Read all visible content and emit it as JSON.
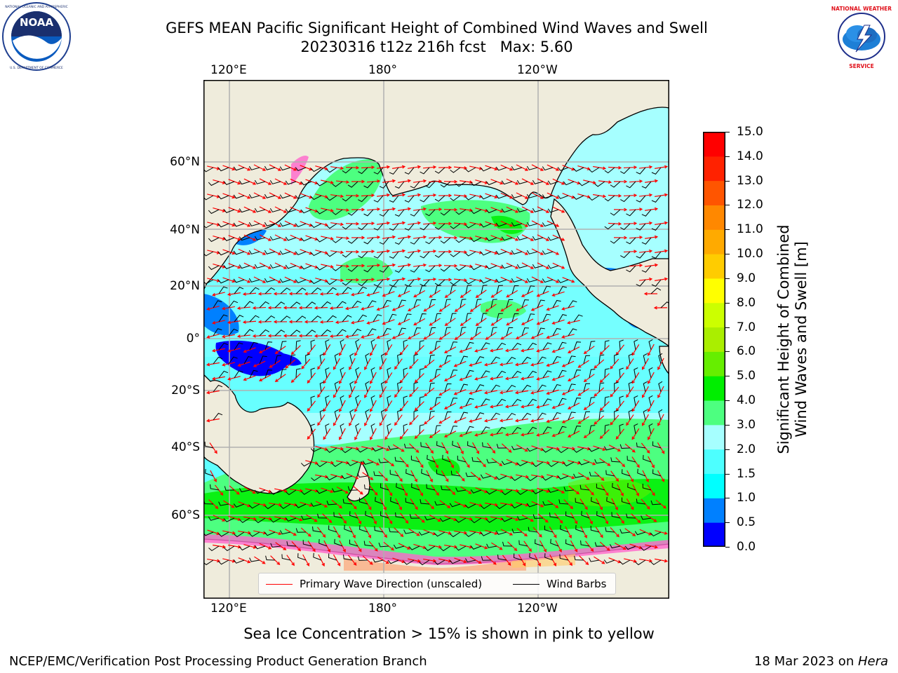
{
  "header": {
    "title_line1": "GEFS MEAN Pacific Significant Height of Combined Wind Waves and Swell",
    "title_line2": "20230316 t12z 216h fcst   Max: 5.60"
  },
  "logos": {
    "left": "NOAA",
    "left_ring_text": "NATIONAL OCEANIC AND ATMOSPHERIC ADMINISTRATION · U.S. DEPARTMENT OF COMMERCE",
    "right_ring_text": "NATIONAL WEATHER SERVICE"
  },
  "map": {
    "lon_labels_top": [
      "120°E",
      "180°",
      "120°W"
    ],
    "lon_labels_bottom": [
      "120°E",
      "180°",
      "120°W"
    ],
    "lat_labels": [
      "60°N",
      "40°N",
      "20°N",
      "0°",
      "20°S",
      "40°S",
      "60°S"
    ],
    "legend": {
      "primary_wave": "Primary Wave Direction (unscaled)",
      "wind_barbs": "Wind Barbs"
    },
    "colors": {
      "land": "#efecdc",
      "wave_arrow": "#ff0000",
      "barb": "#000000",
      "grid": "#b0b0b0"
    }
  },
  "colorbar": {
    "label_line1": "Significant Height of Combined",
    "label_line2": "Wind Waves and Swell [m]",
    "ticks": [
      "15.0",
      "14.0",
      "13.0",
      "12.0",
      "11.0",
      "10.0",
      "9.0",
      "8.0",
      "7.0",
      "6.0",
      "5.0",
      "4.0",
      "3.0",
      "2.0",
      "1.5",
      "1.0",
      "0.5",
      "0.0"
    ],
    "colors_bottom_to_top": [
      "#0000ff",
      "#0080ff",
      "#00ffff",
      "#4dffff",
      "#a6ffff",
      "#4dff80",
      "#00ee00",
      "#66ee00",
      "#aaee00",
      "#ccff00",
      "#ffff00",
      "#ffcc00",
      "#ffaa00",
      "#ff8800",
      "#ff5500",
      "#ff2200",
      "#ff0000"
    ]
  },
  "footer": {
    "note": "Sea Ice Concentration > 15% is shown in pink to yellow",
    "credit": "NCEP/EMC/Verification Post Processing Product Generation Branch",
    "date": "18 Mar 2023 on ",
    "machine": "Hera"
  }
}
